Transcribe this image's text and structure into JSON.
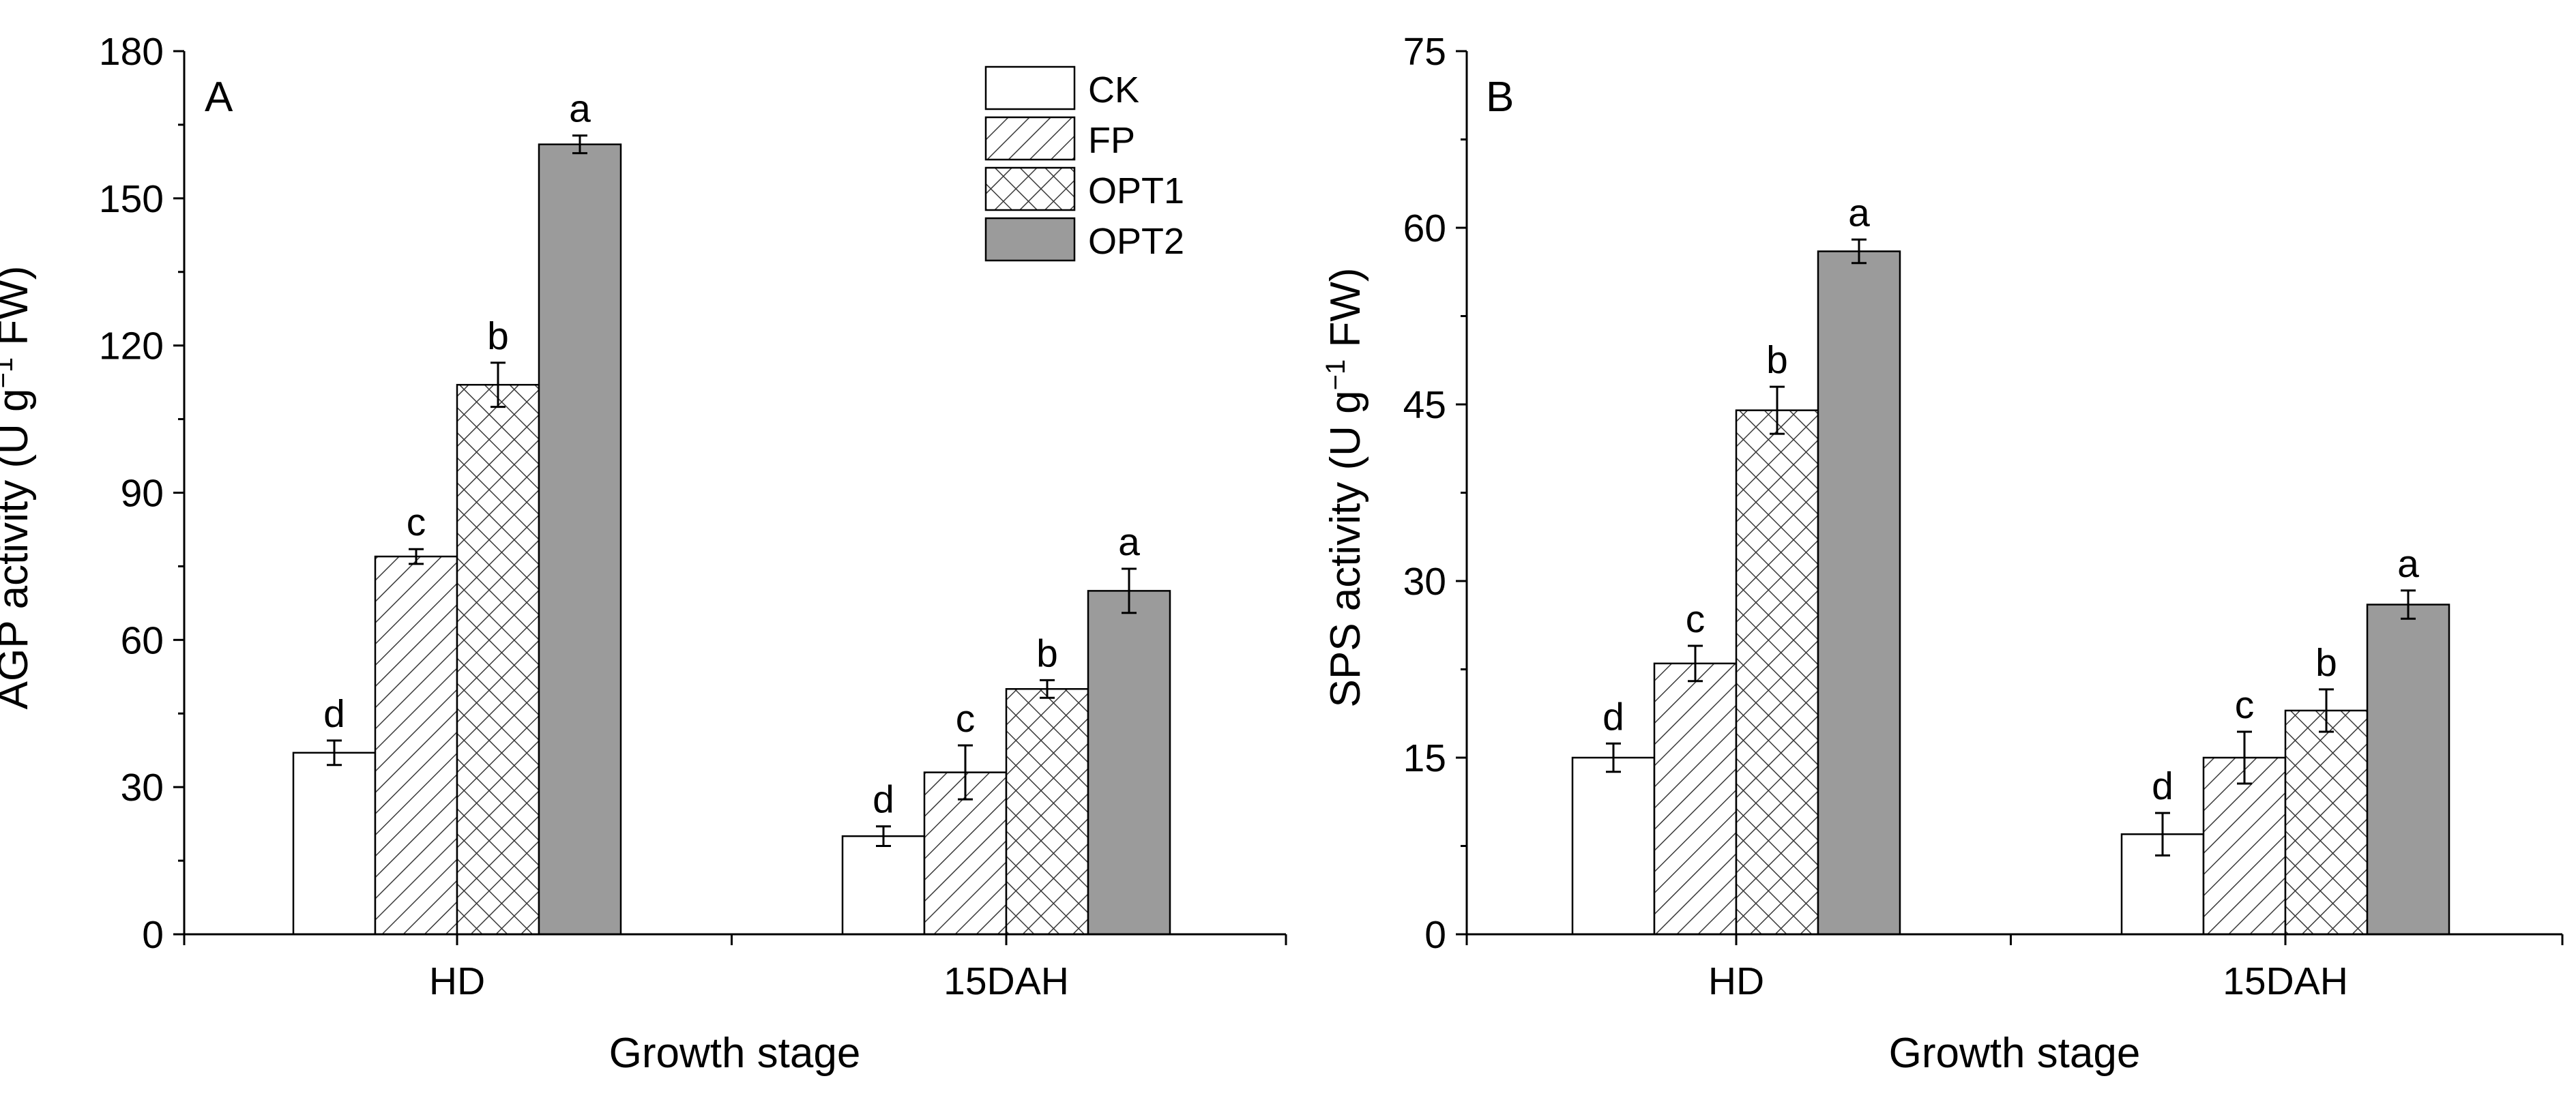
{
  "chart_data": [
    {
      "type": "bar",
      "panel_label": "A",
      "title": "",
      "xlabel": "Growth stage",
      "ylabel_main": "AGP activity (U g",
      "ylabel_sup": "−1",
      "ylabel_tail": " FW)",
      "ylim": [
        0,
        180
      ],
      "yticks": [
        "0",
        "30",
        "60",
        "90",
        "120",
        "150",
        "180"
      ],
      "yticks_values": [
        0,
        30,
        60,
        90,
        120,
        150,
        180
      ],
      "categories": [
        "HD",
        "15DAH"
      ],
      "series": [
        {
          "name": "CK",
          "values": [
            37,
            20
          ],
          "errors": [
            2.5,
            2.0
          ],
          "letters": [
            "d",
            "d"
          ]
        },
        {
          "name": "FP",
          "values": [
            77,
            33
          ],
          "errors": [
            1.5,
            5.5
          ],
          "letters": [
            "c",
            "c"
          ]
        },
        {
          "name": "OPT1",
          "values": [
            112,
            50
          ],
          "errors": [
            4.5,
            1.8
          ],
          "letters": [
            "b",
            "b"
          ]
        },
        {
          "name": "OPT2",
          "values": [
            161,
            70
          ],
          "errors": [
            1.8,
            4.5
          ],
          "letters": [
            "a",
            "a"
          ]
        }
      ],
      "legend_position": "top-right",
      "grid": false
    },
    {
      "type": "bar",
      "panel_label": "B",
      "title": "",
      "xlabel": "Growth stage",
      "ylabel_main": "SPS activity (U g",
      "ylabel_sup": "−1",
      "ylabel_tail": " FW)",
      "ylim": [
        0,
        75
      ],
      "yticks": [
        "0",
        "15",
        "30",
        "45",
        "60",
        "75"
      ],
      "yticks_values": [
        0,
        15,
        30,
        45,
        60,
        75
      ],
      "categories": [
        "HD",
        "15DAH"
      ],
      "series": [
        {
          "name": "CK",
          "values": [
            15,
            8.5
          ],
          "errors": [
            1.2,
            1.8
          ],
          "letters": [
            "d",
            "d"
          ]
        },
        {
          "name": "FP",
          "values": [
            23,
            15
          ],
          "errors": [
            1.5,
            2.2
          ],
          "letters": [
            "c",
            "c"
          ]
        },
        {
          "name": "OPT1",
          "values": [
            44.5,
            19
          ],
          "errors": [
            2.0,
            1.8
          ],
          "letters": [
            "b",
            "b"
          ]
        },
        {
          "name": "OPT2",
          "values": [
            58,
            28
          ],
          "errors": [
            1.0,
            1.2
          ],
          "letters": [
            "a",
            "a"
          ]
        }
      ],
      "grid": false
    }
  ],
  "legend": [
    "CK",
    "FP",
    "OPT1",
    "OPT2"
  ],
  "colors": {
    "ck_fill": "#ffffff",
    "hatch_line": "#3a3a3a",
    "opt2_fill": "#9b9b9b",
    "axis": "#000000"
  }
}
